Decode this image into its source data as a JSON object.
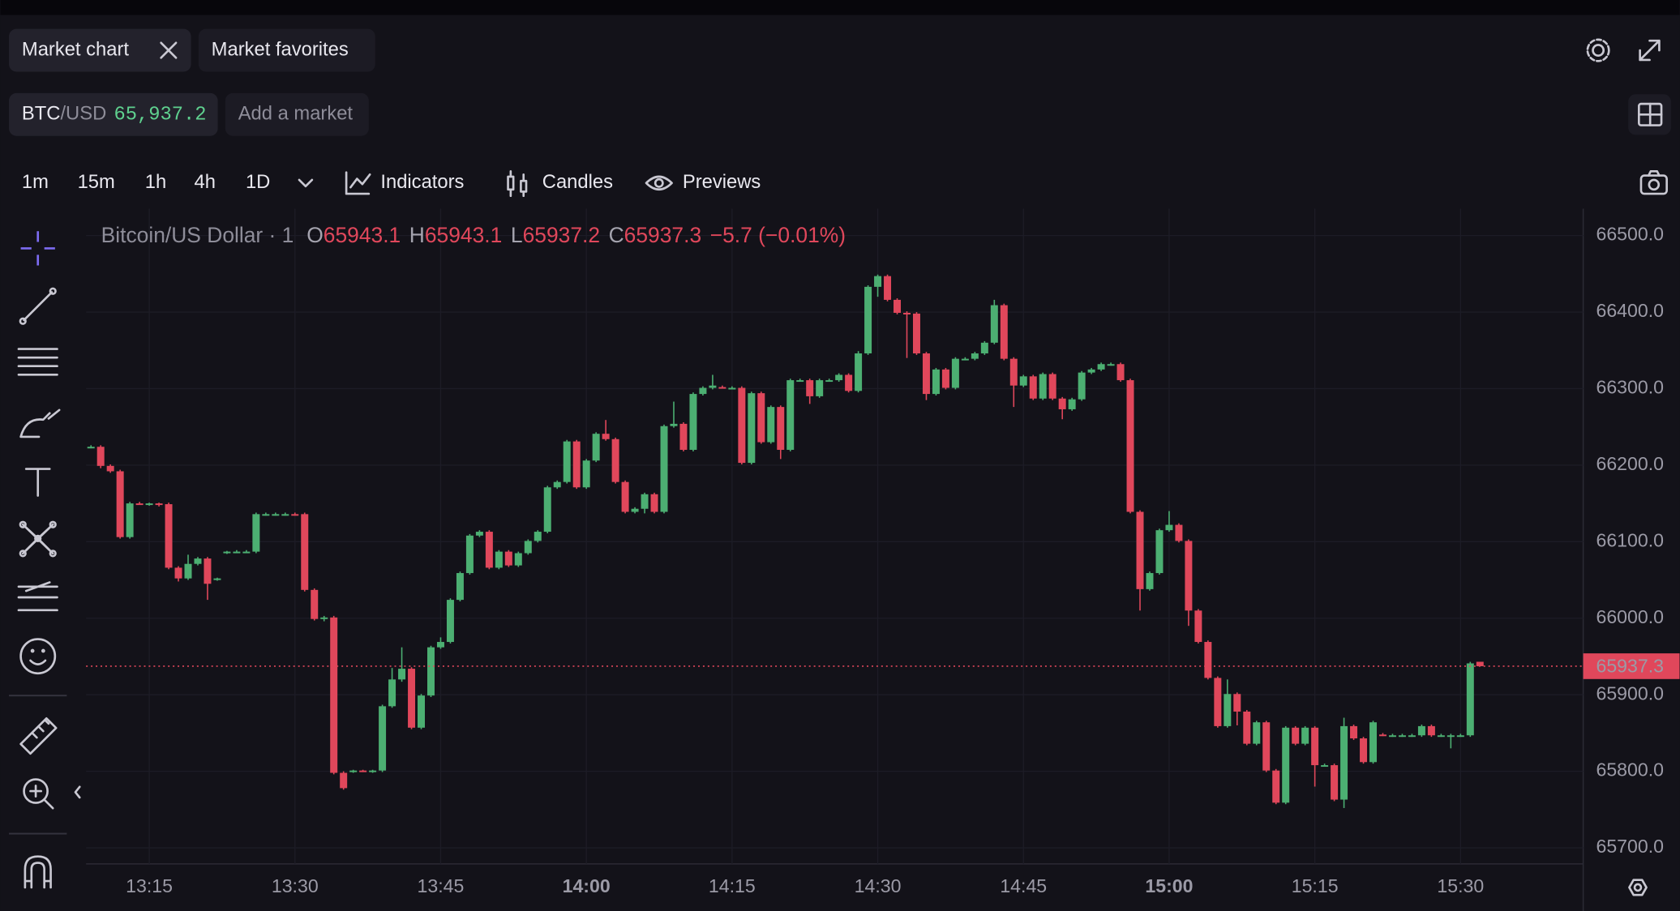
{
  "tabs": [
    {
      "label": "Market chart"
    },
    {
      "label": "Market favorites"
    }
  ],
  "market": {
    "base": "BTC",
    "quote": "/USD",
    "price": "65,937.2"
  },
  "add_market": "Add a market",
  "timeframes": [
    "1m",
    "15m",
    "1h",
    "4h",
    "1D"
  ],
  "tools": [
    "Indicators",
    "Candles",
    "Previews"
  ],
  "chart_data": {
    "type": "candlestick",
    "legend": {
      "symbol": "Bitcoin/US Dollar · 1",
      "items": [
        {
          "label": "O",
          "value": 65943.1
        },
        {
          "label": "H",
          "value": 65943.1
        },
        {
          "label": "L",
          "value": 65937.2
        },
        {
          "label": "C",
          "value": 65937.3
        }
      ],
      "change": "−5.7 (−0.01%)"
    },
    "up_color": "#4caf72",
    "down_color": "#e0475b",
    "grid": true,
    "last_price": 65937.3,
    "ylim": [
      65679,
      66535
    ],
    "yticks": [
      {
        "value": 66500,
        "label": "66500.0"
      },
      {
        "value": 66400,
        "label": "66400.0"
      },
      {
        "value": 66300,
        "label": "66300.0"
      },
      {
        "value": 66200,
        "label": "66200.0"
      },
      {
        "value": 66100,
        "label": "66100.0"
      },
      {
        "value": 66000,
        "label": "66000.0"
      },
      {
        "value": 65900,
        "label": "65900.0"
      },
      {
        "value": 65800,
        "label": "65800.0"
      },
      {
        "value": 65700,
        "label": "65700.0"
      }
    ],
    "xticks": [
      "13:15",
      "13:30",
      "13:45",
      "14:00",
      "14:15",
      "14:30",
      "14:45",
      "15:00",
      "15:15",
      "15:30"
    ],
    "x": [
      "13:09",
      "13:10",
      "13:11",
      "13:12",
      "13:13",
      "13:14",
      "13:15",
      "13:16",
      "13:17",
      "13:18",
      "13:19",
      "13:20",
      "13:21",
      "13:22",
      "13:23",
      "13:24",
      "13:25",
      "13:26",
      "13:27",
      "13:28",
      "13:29",
      "13:30",
      "13:31",
      "13:32",
      "13:33",
      "13:34",
      "13:35",
      "13:36",
      "13:37",
      "13:38",
      "13:39",
      "13:40",
      "13:41",
      "13:42",
      "13:43",
      "13:44",
      "13:45",
      "13:46",
      "13:47",
      "13:48",
      "13:49",
      "13:50",
      "13:51",
      "13:52",
      "13:53",
      "13:54",
      "13:55",
      "13:56",
      "13:57",
      "13:58",
      "13:59",
      "14:00",
      "14:01",
      "14:02",
      "14:03",
      "14:04",
      "14:05",
      "14:06",
      "14:07",
      "14:08",
      "14:09",
      "14:10",
      "14:11",
      "14:12",
      "14:13",
      "14:14",
      "14:15",
      "14:16",
      "14:17",
      "14:18",
      "14:19",
      "14:20",
      "14:21",
      "14:22",
      "14:23",
      "14:24",
      "14:25",
      "14:26",
      "14:27",
      "14:28",
      "14:29",
      "14:30",
      "14:31",
      "14:32",
      "14:33",
      "14:34",
      "14:35",
      "14:36",
      "14:37",
      "14:38",
      "14:39",
      "14:40",
      "14:41",
      "14:42",
      "14:43",
      "14:44",
      "14:45",
      "14:46",
      "14:47",
      "14:48",
      "14:49",
      "14:50",
      "14:51",
      "14:52",
      "14:53",
      "14:54",
      "14:55",
      "14:56",
      "14:57",
      "14:58",
      "14:59",
      "15:00",
      "15:01",
      "15:02",
      "15:03",
      "15:04",
      "15:05",
      "15:06",
      "15:07",
      "15:08",
      "15:09",
      "15:10",
      "15:11",
      "15:12",
      "15:13",
      "15:14",
      "15:15",
      "15:16",
      "15:17",
      "15:18",
      "15:19",
      "15:20",
      "15:21",
      "15:22",
      "15:23",
      "15:24",
      "15:25",
      "15:26",
      "15:27",
      "15:28",
      "15:29",
      "15:30",
      "15:31",
      "15:32"
    ],
    "ohlc": [
      [
        66224,
        66226,
        66222,
        66224
      ],
      [
        66224,
        66226,
        66196,
        66199
      ],
      [
        66199,
        66201,
        66190,
        66192
      ],
      [
        66192,
        66194,
        66104,
        66106
      ],
      [
        66106,
        66152,
        66104,
        66150
      ],
      [
        66150,
        66152,
        66148,
        66149
      ],
      [
        66149,
        66151,
        66147,
        66150
      ],
      [
        66150,
        66151,
        66146,
        66149
      ],
      [
        66149,
        66151,
        66064,
        66066
      ],
      [
        66066,
        66068,
        66048,
        66052
      ],
      [
        66052,
        66083,
        66050,
        66071
      ],
      [
        66071,
        66080,
        66069,
        66078
      ],
      [
        66078,
        66080,
        66024,
        66045
      ],
      [
        66050,
        66053,
        66049,
        66052
      ],
      [
        66086,
        66088,
        66084,
        66087
      ],
      [
        66087,
        66089,
        66085,
        66087
      ],
      [
        66087,
        66089,
        66085,
        66087
      ],
      [
        66087,
        66138,
        66085,
        66136
      ],
      [
        66136,
        66138,
        66134,
        66136
      ],
      [
        66136,
        66138,
        66134,
        66136
      ],
      [
        66136,
        66138,
        66134,
        66136
      ],
      [
        66136,
        66138,
        66134,
        66135
      ],
      [
        66136,
        66138,
        66035,
        66037
      ],
      [
        66037,
        66039,
        65997,
        65999
      ],
      [
        65999,
        66003,
        65996,
        66001
      ],
      [
        66001,
        66003,
        65796,
        65798
      ],
      [
        65798,
        65800,
        65776,
        65778
      ],
      [
        65800,
        65802,
        65798,
        65801
      ],
      [
        65801,
        65802,
        65799,
        65800
      ],
      [
        65800,
        65802,
        65798,
        65801
      ],
      [
        65801,
        65887,
        65799,
        65885
      ],
      [
        65885,
        65935,
        65883,
        65920
      ],
      [
        65920,
        65962,
        65917,
        65934
      ],
      [
        65934,
        65936,
        65855,
        65857
      ],
      [
        65857,
        65901,
        65855,
        65899
      ],
      [
        65899,
        65964,
        65897,
        65962
      ],
      [
        65962,
        65975,
        65960,
        65969
      ],
      [
        65969,
        66026,
        65967,
        66024
      ],
      [
        66024,
        66061,
        66022,
        66059
      ],
      [
        66059,
        66110,
        66057,
        66108
      ],
      [
        66108,
        66115,
        66106,
        66113
      ],
      [
        66113,
        66115,
        66064,
        66066
      ],
      [
        66066,
        66089,
        66064,
        66087
      ],
      [
        66087,
        66089,
        66067,
        66069
      ],
      [
        66069,
        66087,
        66067,
        66085
      ],
      [
        66085,
        66103,
        66083,
        66101
      ],
      [
        66101,
        66115,
        66099,
        66113
      ],
      [
        66113,
        66173,
        66111,
        66171
      ],
      [
        66171,
        66180,
        66169,
        66178
      ],
      [
        66178,
        66233,
        66176,
        66231
      ],
      [
        66231,
        66233,
        66169,
        66171
      ],
      [
        66171,
        66208,
        66169,
        66206
      ],
      [
        66206,
        66243,
        66204,
        66241
      ],
      [
        66241,
        66259,
        66232,
        66234
      ],
      [
        66234,
        66236,
        66176,
        66178
      ],
      [
        66178,
        66180,
        66137,
        66139
      ],
      [
        66139,
        66145,
        66137,
        66143
      ],
      [
        66143,
        66164,
        66137,
        66162
      ],
      [
        66162,
        66164,
        66137,
        66139
      ],
      [
        66139,
        66253,
        66137,
        66251
      ],
      [
        66251,
        66283,
        66249,
        66254
      ],
      [
        66254,
        66256,
        66218,
        66220
      ],
      [
        66220,
        66295,
        66218,
        66293
      ],
      [
        66293,
        66303,
        66291,
        66301
      ],
      [
        66301,
        66318,
        66299,
        66304
      ],
      [
        66302,
        66304,
        66300,
        66301
      ],
      [
        66301,
        66303,
        66299,
        66301
      ],
      [
        66301,
        66303,
        66201,
        66203
      ],
      [
        66203,
        66296,
        66201,
        66294
      ],
      [
        66294,
        66296,
        66228,
        66230
      ],
      [
        66230,
        66278,
        66228,
        66276
      ],
      [
        66276,
        66278,
        66208,
        66220
      ],
      [
        66220,
        66313,
        66218,
        66311
      ],
      [
        66311,
        66313,
        66309,
        66311
      ],
      [
        66311,
        66313,
        66280,
        66290
      ],
      [
        66290,
        66313,
        66288,
        66311
      ],
      [
        66311,
        66313,
        66309,
        66311
      ],
      [
        66311,
        66320,
        66309,
        66318
      ],
      [
        66318,
        66320,
        66295,
        66297
      ],
      [
        66297,
        66349,
        66295,
        66346
      ],
      [
        66346,
        66435,
        66344,
        66433
      ],
      [
        66433,
        66449,
        66420,
        66447
      ],
      [
        66447,
        66449,
        66414,
        66416
      ],
      [
        66416,
        66418,
        66397,
        66399
      ],
      [
        66399,
        66401,
        66340,
        66398
      ],
      [
        66398,
        66400,
        66344,
        66346
      ],
      [
        66346,
        66348,
        66285,
        66293
      ],
      [
        66293,
        66327,
        66291,
        66325
      ],
      [
        66325,
        66327,
        66299,
        66301
      ],
      [
        66301,
        66341,
        66299,
        66339
      ],
      [
        66339,
        66341,
        66337,
        66339
      ],
      [
        66339,
        66348,
        66337,
        66346
      ],
      [
        66346,
        66362,
        66344,
        66360
      ],
      [
        66360,
        66416,
        66358,
        66409
      ],
      [
        66409,
        66411,
        66337,
        66339
      ],
      [
        66339,
        66341,
        66276,
        66304
      ],
      [
        66304,
        66318,
        66302,
        66316
      ],
      [
        66316,
        66318,
        66285,
        66287
      ],
      [
        66287,
        66321,
        66285,
        66319
      ],
      [
        66319,
        66321,
        66285,
        66287
      ],
      [
        66287,
        66289,
        66260,
        66273
      ],
      [
        66273,
        66288,
        66271,
        66286
      ],
      [
        66286,
        66323,
        66284,
        66321
      ],
      [
        66321,
        66327,
        66319,
        66325
      ],
      [
        66325,
        66334,
        66323,
        66332
      ],
      [
        66332,
        66334,
        66330,
        66332
      ],
      [
        66332,
        66334,
        66309,
        66311
      ],
      [
        66311,
        66313,
        66137,
        66139
      ],
      [
        66139,
        66141,
        66010,
        66038
      ],
      [
        66038,
        66061,
        66036,
        66059
      ],
      [
        66059,
        66117,
        66057,
        66115
      ],
      [
        66115,
        66140,
        66113,
        66122
      ],
      [
        66122,
        66124,
        66099,
        66101
      ],
      [
        66101,
        66103,
        65990,
        66010
      ],
      [
        66010,
        66012,
        65967,
        65969
      ],
      [
        65969,
        65971,
        65920,
        65922
      ],
      [
        65922,
        65924,
        65857,
        65859
      ],
      [
        65859,
        65920,
        65857,
        65901
      ],
      [
        65901,
        65903,
        65860,
        65878
      ],
      [
        65878,
        65880,
        65834,
        65836
      ],
      [
        65836,
        65866,
        65834,
        65864
      ],
      [
        65864,
        65866,
        65799,
        65801
      ],
      [
        65801,
        65803,
        65757,
        65759
      ],
      [
        65759,
        65859,
        65757,
        65857
      ],
      [
        65857,
        65859,
        65834,
        65836
      ],
      [
        65836,
        65859,
        65834,
        65857
      ],
      [
        65857,
        65859,
        65780,
        65808
      ],
      [
        65808,
        65810,
        65806,
        65808
      ],
      [
        65808,
        65810,
        65761,
        65763
      ],
      [
        65763,
        65870,
        65752,
        65859
      ],
      [
        65859,
        65861,
        65841,
        65843
      ],
      [
        65843,
        65845,
        65810,
        65812
      ],
      [
        65812,
        65866,
        65810,
        65864
      ],
      [
        65848,
        65850,
        65846,
        65847
      ],
      [
        65847,
        65849,
        65845,
        65847
      ],
      [
        65847,
        65849,
        65845,
        65847
      ],
      [
        65847,
        65849,
        65845,
        65847
      ],
      [
        65847,
        65861,
        65845,
        65859
      ],
      [
        65859,
        65861,
        65845,
        65847
      ],
      [
        65847,
        65849,
        65845,
        65847
      ],
      [
        65847,
        65849,
        65830,
        65847
      ],
      [
        65847,
        65849,
        65845,
        65847
      ],
      [
        65847,
        65943,
        65845,
        65941
      ],
      [
        65943.1,
        65943.1,
        65937.2,
        65937.3
      ]
    ]
  }
}
